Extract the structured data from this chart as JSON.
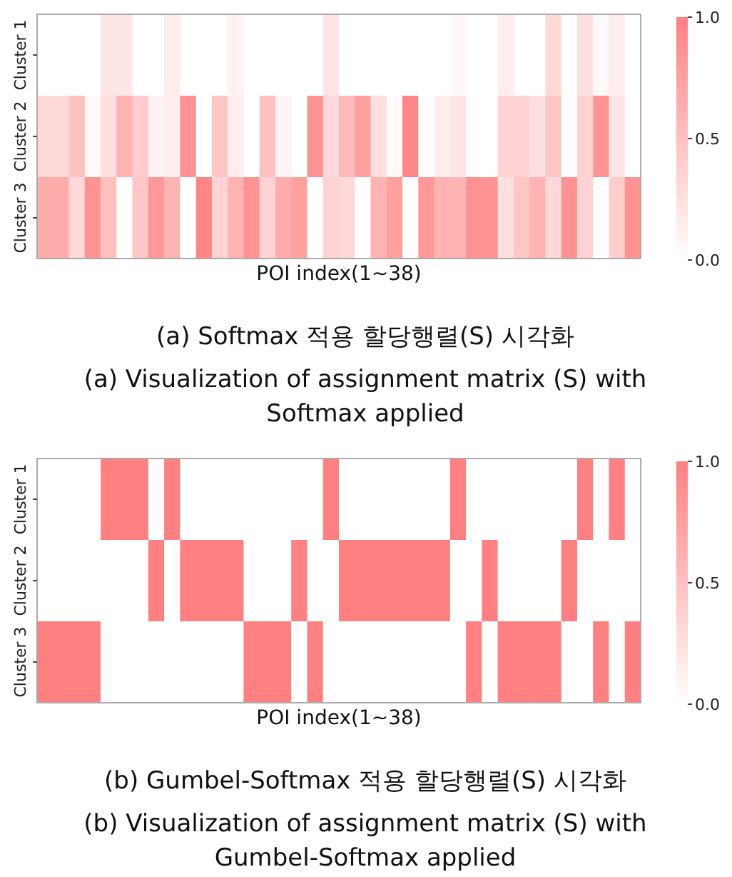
{
  "chart_data": [
    {
      "type": "heatmap",
      "title": "(a) Softmax 적용 할당행렬(S) 시각화",
      "subtitle": "(a) Visualization of assignment matrix (S) with Softmax applied",
      "xlabel": "POI index(1~38)",
      "categories": [
        null,
        null,
        null,
        null,
        null,
        null,
        null,
        null,
        null,
        null,
        null,
        null,
        null,
        null,
        null,
        null,
        null,
        null,
        null,
        null,
        null,
        null,
        null,
        null,
        null,
        null,
        null,
        null,
        null,
        null,
        null,
        null,
        null,
        null,
        null,
        null,
        null,
        null
      ],
      "y_categories": [
        "Cluster 1",
        "Cluster 2",
        "Cluster 3"
      ],
      "cells": [
        [
          0,
          0,
          0,
          0,
          0.2,
          0.2,
          0,
          0,
          0.15,
          0,
          0,
          0,
          0.1,
          0,
          0,
          0,
          0,
          0,
          0.2,
          0,
          0,
          0,
          0,
          0,
          0,
          0,
          0.05,
          0,
          0,
          0.15,
          0,
          0,
          0.3,
          0,
          0.25,
          0.05,
          0.15,
          0
        ],
        [
          0.3,
          0.3,
          0.5,
          0.05,
          0.25,
          0.6,
          0.4,
          0.1,
          0.15,
          0.85,
          0,
          0.45,
          0.15,
          0,
          0.5,
          0.1,
          0,
          0.85,
          0.3,
          0.55,
          0.75,
          0.25,
          0.05,
          0.95,
          0,
          0.15,
          0.2,
          0,
          0,
          0.35,
          0.35,
          0.25,
          0.45,
          0,
          0.35,
          0.85,
          0.2,
          0
        ],
        [
          0.65,
          0.65,
          0.3,
          0.85,
          0.5,
          0,
          0.45,
          0.8,
          0.6,
          0,
          0.95,
          0.35,
          0.6,
          0.85,
          0.35,
          0.65,
          0.75,
          0,
          0.35,
          0.3,
          0,
          0.6,
          0.75,
          0,
          0.8,
          0.6,
          0.6,
          0.85,
          0.85,
          0.25,
          0.45,
          0.6,
          0.3,
          0.85,
          0.35,
          0,
          0.4,
          0.85
        ]
      ],
      "clim": [
        0,
        1
      ],
      "cticks": [
        {
          "value": 0,
          "label": "0.0"
        },
        {
          "value": 0.5,
          "label": "0.5"
        },
        {
          "value": 1,
          "label": "1.0"
        }
      ],
      "colors": [
        "#ffffff",
        "#ff8080"
      ]
    },
    {
      "type": "heatmap",
      "title": "(b) Gumbel-Softmax 적용 할당행렬(S) 시각화",
      "subtitle": "(b) Visualization of assignment matrix (S) with Gumbel-Softmax applied",
      "xlabel": "POI index(1~38)",
      "categories": [
        null,
        null,
        null,
        null,
        null,
        null,
        null,
        null,
        null,
        null,
        null,
        null,
        null,
        null,
        null,
        null,
        null,
        null,
        null,
        null,
        null,
        null,
        null,
        null,
        null,
        null,
        null,
        null,
        null,
        null,
        null,
        null,
        null,
        null,
        null,
        null,
        null,
        null
      ],
      "y_categories": [
        "Cluster 1",
        "Cluster 2",
        "Cluster 3"
      ],
      "cells": [
        [
          0,
          0,
          0,
          0,
          1,
          1,
          1,
          0,
          1,
          0,
          0,
          0,
          0,
          0,
          0,
          0,
          0,
          0,
          1,
          0,
          0,
          0,
          0,
          0,
          0,
          0,
          1,
          0,
          0,
          0,
          0,
          0,
          0,
          0,
          1,
          0,
          1,
          0
        ],
        [
          0,
          0,
          0,
          0,
          0,
          0,
          0,
          1,
          0,
          1,
          1,
          1,
          1,
          0,
          0,
          0,
          1,
          0,
          0,
          1,
          1,
          1,
          1,
          1,
          1,
          1,
          0,
          0,
          1,
          0,
          0,
          0,
          0,
          1,
          0,
          0,
          0,
          0
        ],
        [
          1,
          1,
          1,
          1,
          0,
          0,
          0,
          0,
          0,
          0,
          0,
          0,
          0,
          1,
          1,
          1,
          0,
          1,
          0,
          0,
          0,
          0,
          0,
          0,
          0,
          0,
          0,
          1,
          0,
          1,
          1,
          1,
          1,
          0,
          0,
          1,
          0,
          1
        ]
      ],
      "clim": [
        0,
        1
      ],
      "cticks": [
        {
          "value": 0,
          "label": "0.0"
        },
        {
          "value": 0.5,
          "label": "0.5"
        },
        {
          "value": 1,
          "label": "1.0"
        }
      ],
      "colors": [
        "#ffffff",
        "#ff8080"
      ]
    }
  ]
}
